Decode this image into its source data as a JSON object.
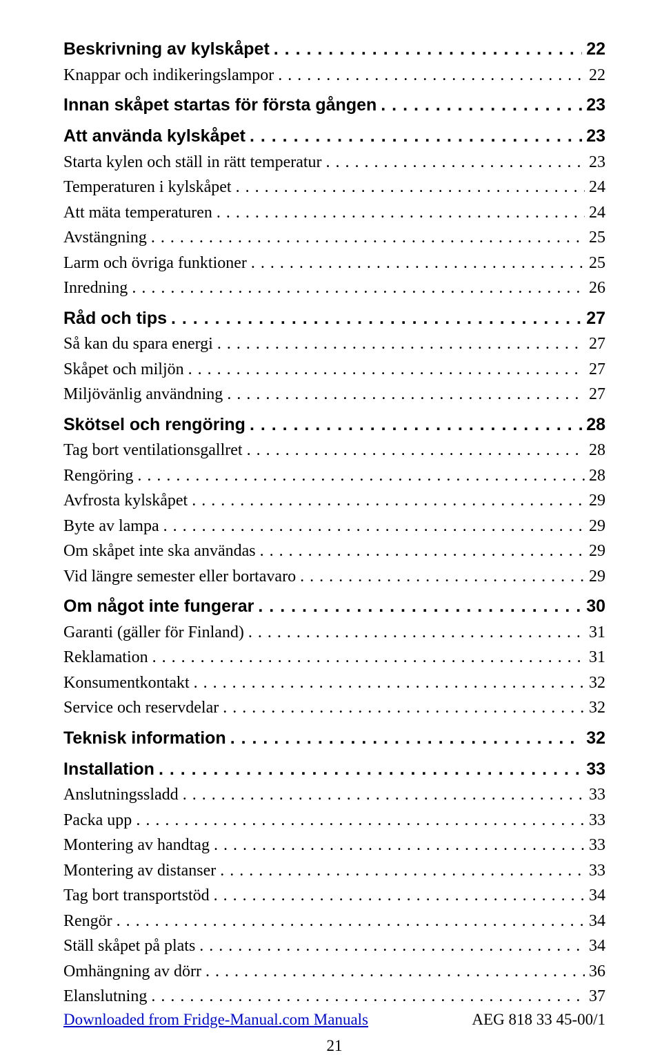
{
  "dots_long": ". . . . . . . . . . . . . . . . . . . . . . . . . . . . . . . . . . . . . . . . . . . . . . . . . . . . . . . . . . . . . . . . . . . . . . . . . . . . . . . . . . . . . . . . . . . . . . . . . . . . . . . . . . . . . . . . . . . . . . . .",
  "sections": [
    {
      "label": "Beskrivning av kylskåpet",
      "page": "22",
      "type": "sec"
    },
    {
      "label": "Knappar och indikeringslampor",
      "page": "22",
      "type": "sub"
    },
    {
      "label": "Innan skåpet startas för första gången",
      "page": "23",
      "type": "sec",
      "gap_before": true
    },
    {
      "label": "Att använda kylskåpet",
      "page": "23",
      "type": "sec",
      "gap_before": true
    },
    {
      "label": "Starta kylen och ställ in rätt temperatur",
      "page": "23",
      "type": "sub"
    },
    {
      "label": "Temperaturen i kylskåpet",
      "page": "24",
      "type": "sub"
    },
    {
      "label": "Att mäta temperaturen",
      "page": "24",
      "type": "sub"
    },
    {
      "label": "Avstängning",
      "page": "25",
      "type": "sub"
    },
    {
      "label": "Larm och övriga funktioner",
      "page": "25",
      "type": "sub"
    },
    {
      "label": "Inredning",
      "page": "26",
      "type": "sub"
    },
    {
      "label": "Råd och tips",
      "page": "27",
      "type": "sec",
      "gap_before": true
    },
    {
      "label": "Så kan du spara energi",
      "page": "27",
      "type": "sub"
    },
    {
      "label": "Skåpet och miljön",
      "page": "27",
      "type": "sub"
    },
    {
      "label": "Miljövänlig användning",
      "page": "27",
      "type": "sub"
    },
    {
      "label": "Skötsel och rengöring",
      "page": "28",
      "type": "sec",
      "gap_before": true
    },
    {
      "label": "Tag bort ventilationsgallret",
      "page": "28",
      "type": "sub"
    },
    {
      "label": "Rengöring",
      "page": "28",
      "type": "sub"
    },
    {
      "label": "Avfrosta kylskåpet",
      "page": "29",
      "type": "sub"
    },
    {
      "label": "Byte av lampa",
      "page": "29",
      "type": "sub"
    },
    {
      "label": "Om skåpet inte ska användas",
      "page": "29",
      "type": "sub"
    },
    {
      "label": "Vid längre semester eller bortavaro",
      "page": "29",
      "type": "sub"
    },
    {
      "label": "Om något inte fungerar",
      "page": "30",
      "type": "sec",
      "gap_before": true
    },
    {
      "label": "Garanti (gäller för Finland)",
      "page": "31",
      "type": "sub"
    },
    {
      "label": "Reklamation",
      "page": "31",
      "type": "sub"
    },
    {
      "label": "Konsumentkontakt",
      "page": "32",
      "type": "sub"
    },
    {
      "label": "Service och reservdelar",
      "page": "32",
      "type": "sub"
    },
    {
      "label": "Teknisk information",
      "page": "32",
      "type": "sec",
      "gap_before": true
    },
    {
      "label": "Installation",
      "page": "33",
      "type": "sec",
      "gap_before": true
    },
    {
      "label": "Anslutningssladd",
      "page": "33",
      "type": "sub"
    },
    {
      "label": "Packa upp",
      "page": "33",
      "type": "sub"
    },
    {
      "label": "Montering av handtag",
      "page": "33",
      "type": "sub"
    },
    {
      "label": "Montering av distanser",
      "page": "33",
      "type": "sub"
    },
    {
      "label": "Tag bort transportstöd",
      "page": "34",
      "type": "sub"
    },
    {
      "label": "Rengör",
      "page": "34",
      "type": "sub"
    },
    {
      "label": "Ställ skåpet på plats",
      "page": "34",
      "type": "sub"
    },
    {
      "label": "Omhängning av dörr",
      "page": "36",
      "type": "sub"
    },
    {
      "label": "Elanslutning",
      "page": "37",
      "type": "sub"
    }
  ],
  "footer": {
    "download_text": "Downloaded from Fridge-Manual.com Manuals",
    "model": "AEG 818 33 45-00/1",
    "page_number": "21"
  }
}
